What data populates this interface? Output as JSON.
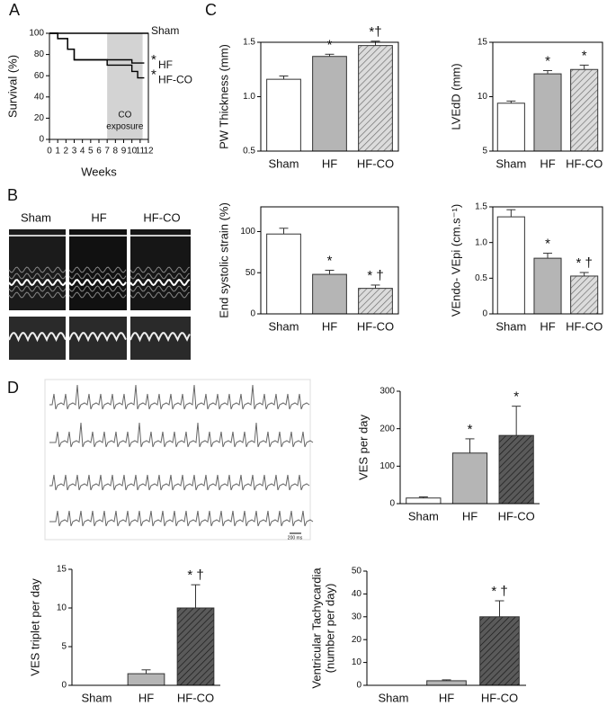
{
  "panel_labels": [
    "A",
    "B",
    "C",
    "D"
  ],
  "images": {
    "echo_labels": [
      "Sham",
      "HF",
      "HF-CO"
    ],
    "ecg_scale": "200 ms"
  },
  "chart_data": [
    {
      "type": "line",
      "ylabel": "Survival (%)",
      "xlabel": "Weeks",
      "frame": "box",
      "xlim": [
        0,
        12
      ],
      "xticks": [
        0,
        1,
        2,
        3,
        4,
        5,
        6,
        7,
        8,
        9,
        10,
        11,
        12
      ],
      "ylim": [
        0,
        100
      ],
      "yticks": [
        0,
        20,
        40,
        60,
        80,
        100
      ],
      "shaded_region": {
        "x": [
          7,
          11.3
        ],
        "color": "#d3d3d3",
        "label": [
          "CO",
          "exposure"
        ]
      },
      "series": [
        {
          "name": "Sham",
          "color": "#000000",
          "x": [
            0,
            12
          ],
          "values": [
            100,
            100
          ]
        },
        {
          "name": "HF",
          "mark": "*",
          "color": "#000000",
          "x": [
            0,
            1,
            1,
            2.2,
            2.2,
            3,
            3,
            10,
            10,
            11.5
          ],
          "values": [
            100,
            100,
            95,
            95,
            85,
            85,
            75,
            75,
            72,
            72
          ]
        },
        {
          "name": "HF-CO",
          "mark": "*",
          "color": "#000000",
          "x": [
            0,
            1,
            1,
            2.2,
            2.2,
            3,
            3,
            7,
            7,
            10,
            10,
            10.7,
            10.7,
            11.5
          ],
          "values": [
            100,
            100,
            95,
            95,
            85,
            85,
            75,
            75,
            70,
            70,
            64,
            64,
            58,
            58
          ]
        }
      ]
    },
    {
      "type": "bar",
      "ylabel": "PW Thickness (mm)",
      "frame": "box",
      "categories": [
        "Sham",
        "HF",
        "HF-CO"
      ],
      "values": [
        1.16,
        1.37,
        1.47
      ],
      "errors": [
        0.03,
        0.02,
        0.04
      ],
      "significance": [
        null,
        "*",
        "*†"
      ],
      "colors": [
        "#ffffff",
        "#b5b5b5",
        "#dcdcdc"
      ],
      "hatched": [
        false,
        false,
        true
      ],
      "hatch_color": "#707070",
      "ylim": [
        0.5,
        1.5
      ],
      "yticks": [
        0.5,
        {
          "value": 1,
          "label": "1.0"
        },
        1.5
      ]
    },
    {
      "type": "bar",
      "ylabel": "LVEdD (mm)",
      "frame": "box",
      "categories": [
        "Sham",
        "HF",
        "HF-CO"
      ],
      "values": [
        9.4,
        12.1,
        12.5
      ],
      "errors": [
        0.2,
        0.3,
        0.4
      ],
      "significance": [
        null,
        "*",
        "*"
      ],
      "colors": [
        "#ffffff",
        "#b5b5b5",
        "#dcdcdc"
      ],
      "hatched": [
        false,
        false,
        true
      ],
      "hatch_color": "#707070",
      "ylim": [
        5,
        15
      ],
      "yticks": [
        5,
        10,
        15
      ]
    },
    {
      "type": "bar",
      "ylabel": "End systolic strain (%)",
      "frame": "box",
      "categories": [
        "Sham",
        "HF",
        "HF-CO"
      ],
      "values": [
        97,
        48,
        31
      ],
      "errors": [
        7,
        5,
        4
      ],
      "significance": [
        null,
        "*",
        "* †"
      ],
      "colors": [
        "#ffffff",
        "#b5b5b5",
        "#dcdcdc"
      ],
      "hatched": [
        false,
        false,
        true
      ],
      "hatch_color": "#707070",
      "ylim": [
        0,
        130
      ],
      "yticks": [
        0,
        50,
        100
      ]
    },
    {
      "type": "bar",
      "ylabel": "VEndo- VEpi (cm.s⁻¹)",
      "frame": "box",
      "categories": [
        "Sham",
        "HF",
        "HF-CO"
      ],
      "values": [
        1.36,
        0.78,
        0.53
      ],
      "errors": [
        0.1,
        0.07,
        0.05
      ],
      "significance": [
        null,
        "*",
        "* †"
      ],
      "colors": [
        "#ffffff",
        "#b5b5b5",
        "#dcdcdc"
      ],
      "hatched": [
        false,
        false,
        true
      ],
      "hatch_color": "#707070",
      "ylim": [
        0,
        1.5
      ],
      "yticks": [
        0,
        0.5,
        {
          "value": 1,
          "label": "1.0"
        },
        1.5
      ]
    },
    {
      "type": "bar",
      "ylabel": "VES  per day",
      "frame": "open",
      "categories": [
        "Sham",
        "HF",
        "HF-CO"
      ],
      "values": [
        15,
        135,
        182
      ],
      "errors": [
        3,
        38,
        78
      ],
      "significance": [
        null,
        "*",
        "*"
      ],
      "colors": [
        "#ffffff",
        "#b5b5b5",
        "#5a5a5a"
      ],
      "hatched": [
        false,
        false,
        true
      ],
      "hatch_color": "#1a1a1a",
      "ylim": [
        0,
        300
      ],
      "yticks": [
        0,
        100,
        200,
        300
      ]
    },
    {
      "type": "bar",
      "ylabel": "VES triplet per day",
      "frame": "open",
      "categories": [
        "Sham",
        "HF",
        "HF-CO"
      ],
      "values": [
        0,
        1.5,
        10
      ],
      "errors": [
        null,
        0.5,
        3
      ],
      "significance": [
        null,
        null,
        "* †"
      ],
      "colors": [
        "#ffffff",
        "#b5b5b5",
        "#5a5a5a"
      ],
      "hatched": [
        false,
        false,
        true
      ],
      "hatch_color": "#1a1a1a",
      "ylim": [
        0,
        15
      ],
      "yticks": [
        0,
        5,
        10,
        15
      ]
    },
    {
      "type": "bar",
      "ylabel": [
        "Ventricular Tachycardia",
        "(number per day)"
      ],
      "frame": "open",
      "categories": [
        "Sham",
        "HF",
        "HF-CO"
      ],
      "values": [
        0,
        2,
        30
      ],
      "errors": [
        null,
        0.4,
        7
      ],
      "significance": [
        null,
        null,
        "* †"
      ],
      "colors": [
        "#ffffff",
        "#b5b5b5",
        "#5a5a5a"
      ],
      "hatched": [
        false,
        false,
        true
      ],
      "hatch_color": "#1a1a1a",
      "ylim": [
        0,
        50
      ],
      "yticks": [
        0,
        10,
        20,
        30,
        40,
        50
      ]
    }
  ]
}
